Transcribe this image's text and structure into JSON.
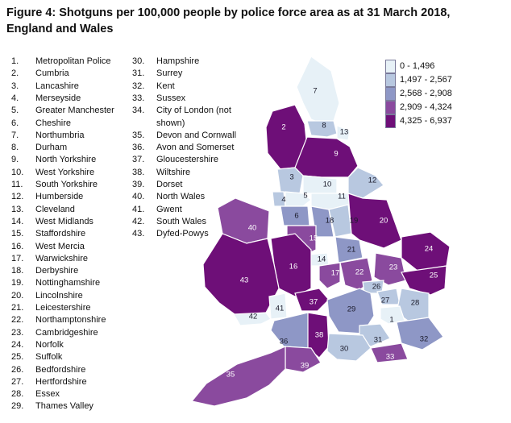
{
  "title": "Figure 4: Shotguns per 100,000 people by police force area as at 31 March 2018, England and Wales",
  "legend": [
    {
      "label": "0 - 1,496",
      "color": "#e7f1f7"
    },
    {
      "label": "1,497 - 2,567",
      "color": "#b8c8e0"
    },
    {
      "label": "2,568 - 2,908",
      "color": "#8e97c6"
    },
    {
      "label": "2,909 - 4,324",
      "color": "#8a4a9e"
    },
    {
      "label": "4,325 - 6,937",
      "color": "#6e0f78"
    }
  ],
  "areas": [
    {
      "num": "1.",
      "name": "Metropolitan Police"
    },
    {
      "num": "2.",
      "name": "Cumbria"
    },
    {
      "num": "3.",
      "name": "Lancashire"
    },
    {
      "num": "4.",
      "name": "Merseyside"
    },
    {
      "num": "5.",
      "name": "Greater Manchester"
    },
    {
      "num": "6.",
      "name": "Cheshire"
    },
    {
      "num": "7.",
      "name": "Northumbria"
    },
    {
      "num": "8.",
      "name": "Durham"
    },
    {
      "num": "9.",
      "name": "North Yorkshire"
    },
    {
      "num": "10.",
      "name": "West Yorkshire"
    },
    {
      "num": "11.",
      "name": "South Yorkshire"
    },
    {
      "num": "12.",
      "name": "Humberside"
    },
    {
      "num": "13.",
      "name": "Cleveland"
    },
    {
      "num": "14.",
      "name": "West Midlands"
    },
    {
      "num": "15.",
      "name": "Staffordshire"
    },
    {
      "num": "16.",
      "name": "West Mercia"
    },
    {
      "num": "17.",
      "name": "Warwickshire"
    },
    {
      "num": "18.",
      "name": "Derbyshire"
    },
    {
      "num": "19.",
      "name": "Nottinghamshire"
    },
    {
      "num": "20.",
      "name": "Lincolnshire"
    },
    {
      "num": "21.",
      "name": "Leicestershire"
    },
    {
      "num": "22.",
      "name": "Northamptonshire"
    },
    {
      "num": "23.",
      "name": "Cambridgeshire"
    },
    {
      "num": "24.",
      "name": "Norfolk"
    },
    {
      "num": "25.",
      "name": "Suffolk"
    },
    {
      "num": "26.",
      "name": "Bedfordshire"
    },
    {
      "num": "27.",
      "name": "Hertfordshire"
    },
    {
      "num": "28.",
      "name": "Essex"
    },
    {
      "num": "29.",
      "name": "Thames Valley"
    },
    {
      "num": "30.",
      "name": "Hampshire"
    },
    {
      "num": "31.",
      "name": "Surrey"
    },
    {
      "num": "32.",
      "name": "Kent"
    },
    {
      "num": "33.",
      "name": "Sussex"
    },
    {
      "num": "34.",
      "name": "City of London (not"
    },
    {
      "num": "",
      "name": "shown)"
    },
    {
      "num": "35.",
      "name": "Devon and Cornwall"
    },
    {
      "num": "36.",
      "name": "Avon and Somerset"
    },
    {
      "num": "37.",
      "name": "Gloucestershire"
    },
    {
      "num": "38.",
      "name": "Wiltshire"
    },
    {
      "num": "39.",
      "name": "Dorset"
    },
    {
      "num": "40.",
      "name": "North Wales"
    },
    {
      "num": "41.",
      "name": "Gwent"
    },
    {
      "num": "42.",
      "name": "South Wales"
    },
    {
      "num": "43.",
      "name": "Dyfed-Powys"
    }
  ],
  "regions": [
    {
      "label": "7",
      "band": 0
    },
    {
      "label": "2",
      "band": 4
    },
    {
      "label": "8",
      "band": 1
    },
    {
      "label": "13",
      "band": 0
    },
    {
      "label": "9",
      "band": 4
    },
    {
      "label": "3",
      "band": 1
    },
    {
      "label": "10",
      "band": 0
    },
    {
      "label": "12",
      "band": 1
    },
    {
      "label": "4",
      "band": 1
    },
    {
      "label": "5",
      "band": 0
    },
    {
      "label": "11",
      "band": 0
    },
    {
      "label": "6",
      "band": 2
    },
    {
      "label": "18",
      "band": 2
    },
    {
      "label": "19",
      "band": 1
    },
    {
      "label": "20",
      "band": 4
    },
    {
      "label": "40",
      "band": 3
    },
    {
      "label": "15",
      "band": 3
    },
    {
      "label": "21",
      "band": 2
    },
    {
      "label": "24",
      "band": 4
    },
    {
      "label": "14",
      "band": 0
    },
    {
      "label": "16",
      "band": 4
    },
    {
      "label": "17",
      "band": 3
    },
    {
      "label": "22",
      "band": 3
    },
    {
      "label": "23",
      "band": 3
    },
    {
      "label": "25",
      "band": 4
    },
    {
      "label": "43",
      "band": 4
    },
    {
      "label": "26",
      "band": 1
    },
    {
      "label": "27",
      "band": 1
    },
    {
      "label": "28",
      "band": 1
    },
    {
      "label": "41",
      "band": 0
    },
    {
      "label": "37",
      "band": 4
    },
    {
      "label": "29",
      "band": 2
    },
    {
      "label": "42",
      "band": 0
    },
    {
      "label": "1",
      "band": 0
    },
    {
      "label": "36",
      "band": 2
    },
    {
      "label": "38",
      "band": 4
    },
    {
      "label": "31",
      "band": 1
    },
    {
      "label": "32",
      "band": 2
    },
    {
      "label": "30",
      "band": 1
    },
    {
      "label": "33",
      "band": 3
    },
    {
      "label": "39",
      "band": 3
    },
    {
      "label": "35",
      "band": 3
    }
  ]
}
